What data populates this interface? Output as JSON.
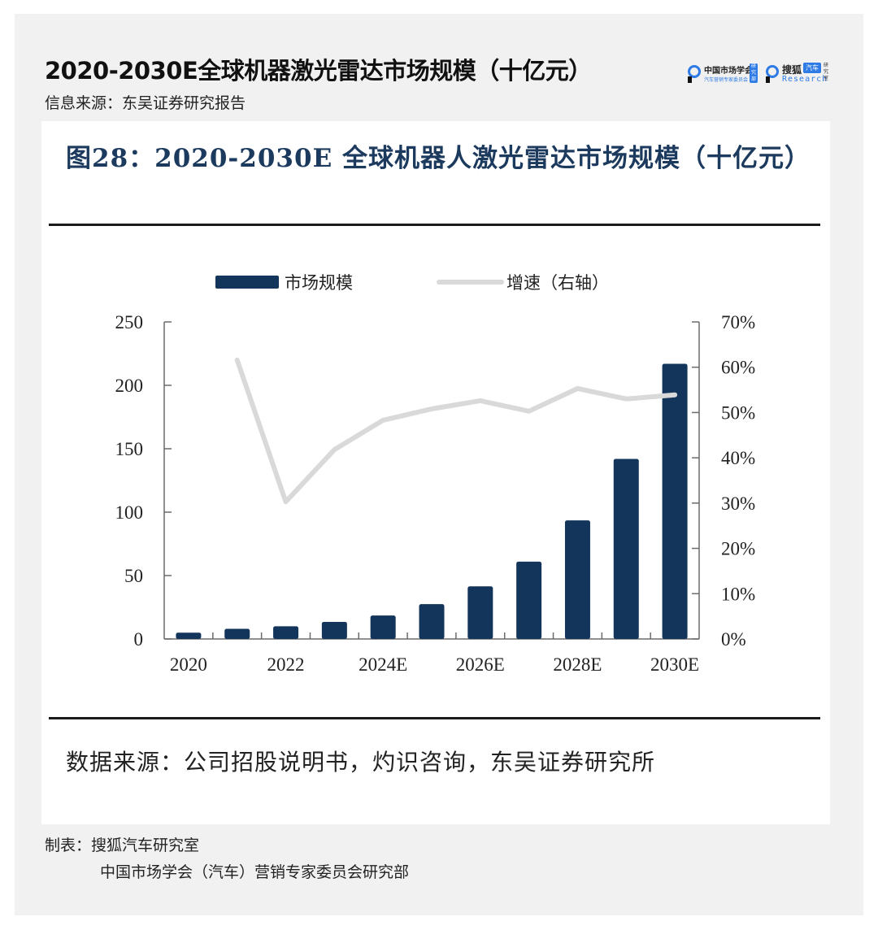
{
  "header": {
    "title": "2020-2030E全球机器激光雷达市场规模（十亿元）",
    "info_source": "信息来源：东吴证券研究报告"
  },
  "logos": {
    "logo1": {
      "name": "中国市场学会",
      "subtitle": "汽车营销专家委员会",
      "badge": "研究部"
    },
    "logo2": {
      "name": "搜狐",
      "badge": "汽车",
      "subtitle": "Research",
      "side": "研究室"
    }
  },
  "figure": {
    "title": "图28：2020-2030E 全球机器人激光雷达市场规模（十亿元）",
    "source": "数据来源：公司招股说明书，灼识咨询，东吴证券研究所"
  },
  "credits": {
    "line1": "制表：搜狐汽车研究室",
    "line2": "中国市场学会（汽车）营销专家委员会研究部"
  },
  "colors": {
    "bar": "#14355b",
    "line": "#d9d9d9",
    "title": "#1c3a5e",
    "card_bg": "#f1f1f1"
  },
  "chart_data": {
    "type": "bar",
    "title": "2020-2030E 全球机器人激光雷达市场规模（十亿元）",
    "categories": [
      "2020",
      "2021",
      "2022",
      "2023",
      "2024E",
      "2025E",
      "2026E",
      "2027E",
      "2028E",
      "2029E",
      "2030E"
    ],
    "x_tick_labels": [
      "2020",
      "2022",
      "2024E",
      "2026E",
      "2028E",
      "2030E"
    ],
    "series": [
      {
        "name": "市场规模",
        "type": "bar",
        "axis": "left",
        "values": [
          5,
          8,
          10,
          13.5,
          18.5,
          27.5,
          41.5,
          61,
          93.5,
          142,
          217
        ]
      },
      {
        "name": "增速（右轴）",
        "type": "line",
        "axis": "right",
        "values": [
          null,
          61.6,
          30.3,
          41.8,
          48.3,
          50.8,
          52.6,
          50.3,
          55.3,
          53.0,
          53.9
        ]
      }
    ],
    "left_axis": {
      "ylim": [
        0,
        250
      ],
      "ticks": [
        "0",
        "50",
        "100",
        "150",
        "200",
        "250"
      ]
    },
    "right_axis": {
      "ylim": [
        0,
        70
      ],
      "ticks": [
        "0%",
        "10%",
        "20%",
        "30%",
        "40%",
        "50%",
        "60%",
        "70%"
      ]
    },
    "legend": {
      "position": "top",
      "entries": [
        "市场规模",
        "增速（右轴）"
      ]
    },
    "grid": false,
    "xlabel": "",
    "ylabel": ""
  }
}
